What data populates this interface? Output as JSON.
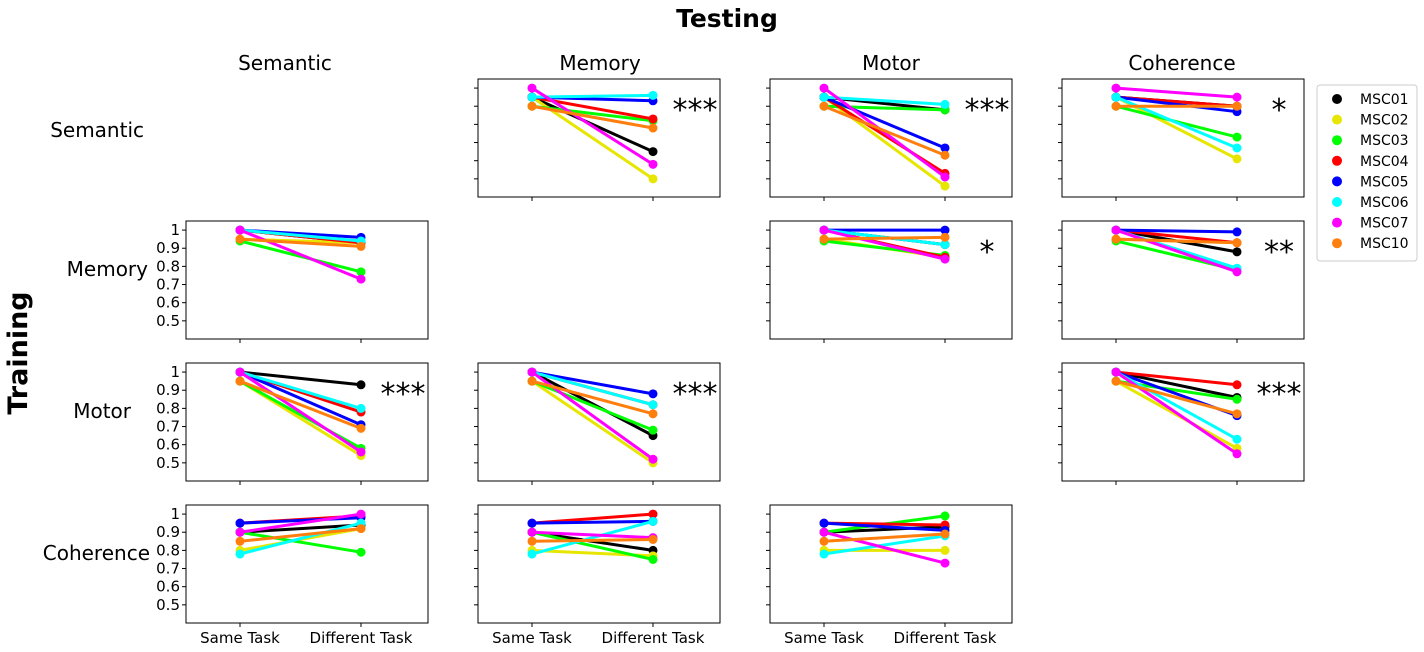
{
  "figure": {
    "title": "Testing",
    "row_axis_label": "Training",
    "column_titles": [
      "Semantic",
      "Memory",
      "Motor",
      "Coherence"
    ],
    "row_titles": [
      "Semantic",
      "Memory",
      "Motor",
      "Coherence"
    ],
    "legend": [
      {
        "name": "MSC01",
        "color": "#000000"
      },
      {
        "name": "MSC02",
        "color": "#e6e600"
      },
      {
        "name": "MSC03",
        "color": "#00ff00"
      },
      {
        "name": "MSC04",
        "color": "#ff0000"
      },
      {
        "name": "MSC05",
        "color": "#0000ff"
      },
      {
        "name": "MSC06",
        "color": "#00ffff"
      },
      {
        "name": "MSC07",
        "color": "#ff00ff"
      },
      {
        "name": "MSC10",
        "color": "#ff7f0e"
      }
    ]
  },
  "chart_data": [
    {
      "type": "line",
      "training": "Semantic",
      "testing": "Memory",
      "categories": [
        "Same Task",
        "Different Task"
      ],
      "ylim": [
        0.4,
        1.05
      ],
      "yticks": [
        0.5,
        0.6,
        0.7,
        0.8,
        0.9,
        1.0
      ],
      "significance": "***",
      "series": [
        {
          "name": "MSC01",
          "values": [
            0.95,
            0.65
          ]
        },
        {
          "name": "MSC02",
          "values": [
            0.95,
            0.5
          ]
        },
        {
          "name": "MSC03",
          "values": [
            0.9,
            0.82
          ]
        },
        {
          "name": "MSC04",
          "values": [
            0.95,
            0.83
          ]
        },
        {
          "name": "MSC05",
          "values": [
            0.95,
            0.93
          ]
        },
        {
          "name": "MSC06",
          "values": [
            0.95,
            0.96
          ]
        },
        {
          "name": "MSC07",
          "values": [
            1.0,
            0.58
          ]
        },
        {
          "name": "MSC10",
          "values": [
            0.9,
            0.78
          ]
        }
      ]
    },
    {
      "type": "line",
      "training": "Semantic",
      "testing": "Motor",
      "categories": [
        "Same Task",
        "Different Task"
      ],
      "ylim": [
        0.4,
        1.05
      ],
      "yticks": [
        0.5,
        0.6,
        0.7,
        0.8,
        0.9,
        1.0
      ],
      "significance": "***",
      "series": [
        {
          "name": "MSC01",
          "values": [
            0.95,
            0.88
          ]
        },
        {
          "name": "MSC02",
          "values": [
            0.95,
            0.46
          ]
        },
        {
          "name": "MSC03",
          "values": [
            0.9,
            0.88
          ]
        },
        {
          "name": "MSC04",
          "values": [
            0.95,
            0.53
          ]
        },
        {
          "name": "MSC05",
          "values": [
            0.95,
            0.67
          ]
        },
        {
          "name": "MSC06",
          "values": [
            0.95,
            0.91
          ]
        },
        {
          "name": "MSC07",
          "values": [
            1.0,
            0.51
          ]
        },
        {
          "name": "MSC10",
          "values": [
            0.9,
            0.63
          ]
        }
      ]
    },
    {
      "type": "line",
      "training": "Semantic",
      "testing": "Coherence",
      "categories": [
        "Same Task",
        "Different Task"
      ],
      "ylim": [
        0.4,
        1.05
      ],
      "yticks": [
        0.5,
        0.6,
        0.7,
        0.8,
        0.9,
        1.0
      ],
      "significance": "*",
      "series": [
        {
          "name": "MSC01",
          "values": [
            0.95,
            0.9
          ]
        },
        {
          "name": "MSC02",
          "values": [
            0.95,
            0.61
          ]
        },
        {
          "name": "MSC03",
          "values": [
            0.9,
            0.73
          ]
        },
        {
          "name": "MSC04",
          "values": [
            0.95,
            0.9
          ]
        },
        {
          "name": "MSC05",
          "values": [
            0.95,
            0.87
          ]
        },
        {
          "name": "MSC06",
          "values": [
            0.95,
            0.67
          ]
        },
        {
          "name": "MSC07",
          "values": [
            1.0,
            0.95
          ]
        },
        {
          "name": "MSC10",
          "values": [
            0.9,
            0.9
          ]
        }
      ]
    },
    {
      "type": "line",
      "training": "Memory",
      "testing": "Semantic",
      "categories": [
        "Same Task",
        "Different Task"
      ],
      "ylim": [
        0.4,
        1.05
      ],
      "yticks": [
        0.5,
        0.6,
        0.7,
        0.8,
        0.9,
        1.0
      ],
      "significance": "",
      "series": [
        {
          "name": "MSC01",
          "values": [
            1.0,
            0.93
          ]
        },
        {
          "name": "MSC02",
          "values": [
            0.95,
            0.93
          ]
        },
        {
          "name": "MSC03",
          "values": [
            0.94,
            0.77
          ]
        },
        {
          "name": "MSC04",
          "values": [
            1.0,
            0.93
          ]
        },
        {
          "name": "MSC05",
          "values": [
            1.0,
            0.96
          ]
        },
        {
          "name": "MSC06",
          "values": [
            1.0,
            0.94
          ]
        },
        {
          "name": "MSC07",
          "values": [
            1.0,
            0.73
          ]
        },
        {
          "name": "MSC10",
          "values": [
            0.95,
            0.91
          ]
        }
      ]
    },
    {
      "type": "line",
      "training": "Memory",
      "testing": "Motor",
      "categories": [
        "Same Task",
        "Different Task"
      ],
      "ylim": [
        0.4,
        1.05
      ],
      "yticks": [
        0.5,
        0.6,
        0.7,
        0.8,
        0.9,
        1.0
      ],
      "significance": "*",
      "series": [
        {
          "name": "MSC01",
          "values": [
            1.0,
            0.92
          ]
        },
        {
          "name": "MSC02",
          "values": [
            0.95,
            0.85
          ]
        },
        {
          "name": "MSC03",
          "values": [
            0.94,
            0.86
          ]
        },
        {
          "name": "MSC04",
          "values": [
            1.0,
            0.85
          ]
        },
        {
          "name": "MSC05",
          "values": [
            1.0,
            1.0
          ]
        },
        {
          "name": "MSC06",
          "values": [
            1.0,
            0.92
          ]
        },
        {
          "name": "MSC07",
          "values": [
            1.0,
            0.84
          ]
        },
        {
          "name": "MSC10",
          "values": [
            0.95,
            0.96
          ]
        }
      ]
    },
    {
      "type": "line",
      "training": "Memory",
      "testing": "Coherence",
      "categories": [
        "Same Task",
        "Different Task"
      ],
      "ylim": [
        0.4,
        1.05
      ],
      "yticks": [
        0.5,
        0.6,
        0.7,
        0.8,
        0.9,
        1.0
      ],
      "significance": "**",
      "series": [
        {
          "name": "MSC01",
          "values": [
            1.0,
            0.88
          ]
        },
        {
          "name": "MSC02",
          "values": [
            0.95,
            0.93
          ]
        },
        {
          "name": "MSC03",
          "values": [
            0.94,
            0.78
          ]
        },
        {
          "name": "MSC04",
          "values": [
            1.0,
            0.93
          ]
        },
        {
          "name": "MSC05",
          "values": [
            1.0,
            0.99
          ]
        },
        {
          "name": "MSC06",
          "values": [
            1.0,
            0.79
          ]
        },
        {
          "name": "MSC07",
          "values": [
            1.0,
            0.77
          ]
        },
        {
          "name": "MSC10",
          "values": [
            0.95,
            0.93
          ]
        }
      ]
    },
    {
      "type": "line",
      "training": "Motor",
      "testing": "Semantic",
      "categories": [
        "Same Task",
        "Different Task"
      ],
      "ylim": [
        0.4,
        1.05
      ],
      "yticks": [
        0.5,
        0.6,
        0.7,
        0.8,
        0.9,
        1.0
      ],
      "significance": "***",
      "series": [
        {
          "name": "MSC01",
          "values": [
            1.0,
            0.93
          ]
        },
        {
          "name": "MSC02",
          "values": [
            0.95,
            0.54
          ]
        },
        {
          "name": "MSC03",
          "values": [
            0.95,
            0.58
          ]
        },
        {
          "name": "MSC04",
          "values": [
            1.0,
            0.78
          ]
        },
        {
          "name": "MSC05",
          "values": [
            1.0,
            0.71
          ]
        },
        {
          "name": "MSC06",
          "values": [
            1.0,
            0.8
          ]
        },
        {
          "name": "MSC07",
          "values": [
            1.0,
            0.56
          ]
        },
        {
          "name": "MSC10",
          "values": [
            0.95,
            0.69
          ]
        }
      ]
    },
    {
      "type": "line",
      "training": "Motor",
      "testing": "Memory",
      "categories": [
        "Same Task",
        "Different Task"
      ],
      "ylim": [
        0.4,
        1.05
      ],
      "yticks": [
        0.5,
        0.6,
        0.7,
        0.8,
        0.9,
        1.0
      ],
      "significance": "***",
      "series": [
        {
          "name": "MSC01",
          "values": [
            1.0,
            0.65
          ]
        },
        {
          "name": "MSC02",
          "values": [
            0.95,
            0.5
          ]
        },
        {
          "name": "MSC03",
          "values": [
            0.95,
            0.68
          ]
        },
        {
          "name": "MSC04",
          "values": [
            1.0,
            0.82
          ]
        },
        {
          "name": "MSC05",
          "values": [
            1.0,
            0.88
          ]
        },
        {
          "name": "MSC06",
          "values": [
            1.0,
            0.82
          ]
        },
        {
          "name": "MSC07",
          "values": [
            1.0,
            0.52
          ]
        },
        {
          "name": "MSC10",
          "values": [
            0.95,
            0.77
          ]
        }
      ]
    },
    {
      "type": "line",
      "training": "Motor",
      "testing": "Coherence",
      "categories": [
        "Same Task",
        "Different Task"
      ],
      "ylim": [
        0.4,
        1.05
      ],
      "yticks": [
        0.5,
        0.6,
        0.7,
        0.8,
        0.9,
        1.0
      ],
      "significance": "***",
      "series": [
        {
          "name": "MSC01",
          "values": [
            1.0,
            0.86
          ]
        },
        {
          "name": "MSC02",
          "values": [
            0.95,
            0.58
          ]
        },
        {
          "name": "MSC03",
          "values": [
            0.95,
            0.85
          ]
        },
        {
          "name": "MSC04",
          "values": [
            1.0,
            0.93
          ]
        },
        {
          "name": "MSC05",
          "values": [
            1.0,
            0.76
          ]
        },
        {
          "name": "MSC06",
          "values": [
            1.0,
            0.63
          ]
        },
        {
          "name": "MSC07",
          "values": [
            1.0,
            0.55
          ]
        },
        {
          "name": "MSC10",
          "values": [
            0.95,
            0.77
          ]
        }
      ]
    },
    {
      "type": "line",
      "training": "Coherence",
      "testing": "Semantic",
      "categories": [
        "Same Task",
        "Different Task"
      ],
      "ylim": [
        0.4,
        1.05
      ],
      "yticks": [
        0.5,
        0.6,
        0.7,
        0.8,
        0.9,
        1.0
      ],
      "significance": "",
      "series": [
        {
          "name": "MSC01",
          "values": [
            0.9,
            0.94
          ]
        },
        {
          "name": "MSC02",
          "values": [
            0.8,
            0.92
          ]
        },
        {
          "name": "MSC03",
          "values": [
            0.9,
            0.79
          ]
        },
        {
          "name": "MSC04",
          "values": [
            0.95,
            0.99
          ]
        },
        {
          "name": "MSC05",
          "values": [
            0.95,
            0.98
          ]
        },
        {
          "name": "MSC06",
          "values": [
            0.78,
            0.95
          ]
        },
        {
          "name": "MSC07",
          "values": [
            0.9,
            1.0
          ]
        },
        {
          "name": "MSC10",
          "values": [
            0.85,
            0.92
          ]
        }
      ]
    },
    {
      "type": "line",
      "training": "Coherence",
      "testing": "Memory",
      "categories": [
        "Same Task",
        "Different Task"
      ],
      "ylim": [
        0.4,
        1.05
      ],
      "yticks": [
        0.5,
        0.6,
        0.7,
        0.8,
        0.9,
        1.0
      ],
      "significance": "",
      "series": [
        {
          "name": "MSC01",
          "values": [
            0.9,
            0.8
          ]
        },
        {
          "name": "MSC02",
          "values": [
            0.8,
            0.77
          ]
        },
        {
          "name": "MSC03",
          "values": [
            0.9,
            0.75
          ]
        },
        {
          "name": "MSC04",
          "values": [
            0.95,
            1.0
          ]
        },
        {
          "name": "MSC05",
          "values": [
            0.95,
            0.96
          ]
        },
        {
          "name": "MSC06",
          "values": [
            0.78,
            0.96
          ]
        },
        {
          "name": "MSC07",
          "values": [
            0.9,
            0.87
          ]
        },
        {
          "name": "MSC10",
          "values": [
            0.85,
            0.86
          ]
        }
      ]
    },
    {
      "type": "line",
      "training": "Coherence",
      "testing": "Motor",
      "categories": [
        "Same Task",
        "Different Task"
      ],
      "ylim": [
        0.4,
        1.05
      ],
      "yticks": [
        0.5,
        0.6,
        0.7,
        0.8,
        0.9,
        1.0
      ],
      "significance": "",
      "series": [
        {
          "name": "MSC01",
          "values": [
            0.9,
            0.93
          ]
        },
        {
          "name": "MSC02",
          "values": [
            0.8,
            0.8
          ]
        },
        {
          "name": "MSC03",
          "values": [
            0.9,
            0.99
          ]
        },
        {
          "name": "MSC04",
          "values": [
            0.95,
            0.94
          ]
        },
        {
          "name": "MSC05",
          "values": [
            0.95,
            0.91
          ]
        },
        {
          "name": "MSC06",
          "values": [
            0.78,
            0.88
          ]
        },
        {
          "name": "MSC07",
          "values": [
            0.9,
            0.73
          ]
        },
        {
          "name": "MSC10",
          "values": [
            0.85,
            0.89
          ]
        }
      ]
    }
  ]
}
